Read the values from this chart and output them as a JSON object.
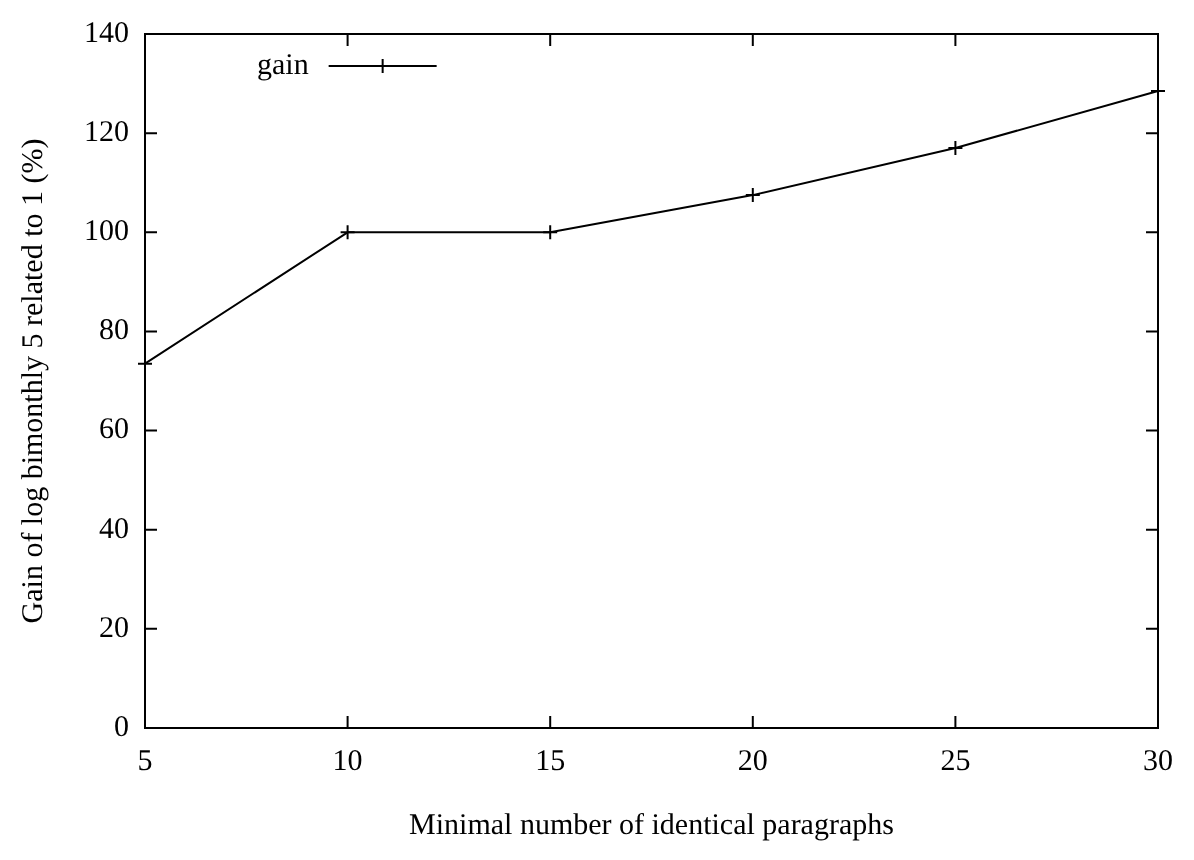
{
  "chart_data": {
    "type": "line",
    "xlabel": "Minimal number of identical paragraphs",
    "ylabel": "Gain of log bimonthly 5 related to 1 (%)",
    "x": [
      5,
      10,
      15,
      20,
      25,
      30
    ],
    "series": [
      {
        "name": "gain",
        "color": "#000000",
        "values": [
          73.5,
          100,
          100,
          107.5,
          117,
          128.5
        ]
      }
    ],
    "xlim": [
      5,
      30
    ],
    "xticks": [
      5,
      10,
      15,
      20,
      25,
      30
    ],
    "ylim": [
      0,
      140
    ],
    "yticks": [
      0,
      20,
      40,
      60,
      80,
      100,
      120,
      140
    ],
    "grid": false,
    "legend": "top left",
    "marker": "cross",
    "line_style": "solid"
  }
}
